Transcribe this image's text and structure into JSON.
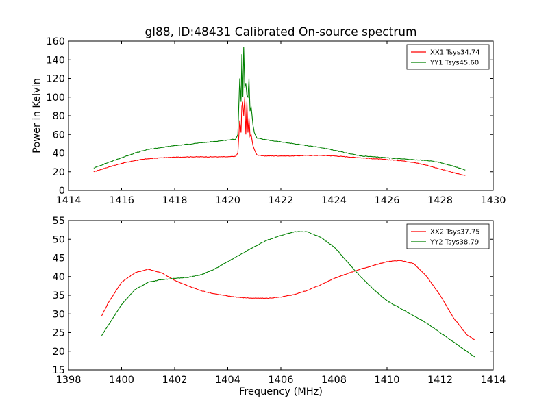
{
  "figure": {
    "title": "gl88, ID:48431 Calibrated On-source spectrum",
    "background": "#ffffff"
  },
  "chart_data": [
    {
      "type": "line",
      "title": "gl88, ID:48431 Calibrated On-source spectrum",
      "xlabel": "",
      "ylabel": "Power in Kelvin",
      "xlim": [
        1414,
        1430
      ],
      "ylim": [
        0,
        160
      ],
      "xticks": [
        1414,
        1416,
        1418,
        1420,
        1422,
        1424,
        1426,
        1428,
        1430
      ],
      "yticks": [
        0,
        20,
        40,
        60,
        80,
        100,
        120,
        140,
        160
      ],
      "grid": false,
      "legend_position": "top-right",
      "series": [
        {
          "name": "XX1 Tsys34.74",
          "color": "#ff0000",
          "x": [
            1414.95,
            1415.5,
            1416.0,
            1416.5,
            1417.0,
            1417.5,
            1418.0,
            1418.5,
            1419.0,
            1419.5,
            1420.0,
            1420.3,
            1420.38,
            1420.45,
            1420.5,
            1420.53,
            1420.56,
            1420.6,
            1420.64,
            1420.68,
            1420.72,
            1420.76,
            1420.8,
            1420.84,
            1420.88,
            1420.95,
            1421.0,
            1421.1,
            1421.3,
            1421.5,
            1422.0,
            1422.5,
            1423.0,
            1423.5,
            1424.0,
            1424.5,
            1425.0,
            1425.5,
            1426.0,
            1426.5,
            1427.0,
            1427.5,
            1428.0,
            1428.5,
            1428.95
          ],
          "y": [
            20,
            25,
            29,
            32,
            34,
            35,
            35.5,
            36,
            36,
            36,
            36,
            36.5,
            40,
            75,
            62,
            90,
            95,
            80,
            100,
            60,
            95,
            62,
            78,
            58,
            60,
            48,
            44,
            38,
            37,
            37,
            37,
            37,
            37.5,
            37.5,
            37,
            36,
            35,
            34,
            33,
            32,
            30,
            27,
            23,
            19,
            16
          ]
        },
        {
          "name": "YY1 Tsys45.60",
          "color": "#008000",
          "x": [
            1414.95,
            1415.5,
            1416.0,
            1416.5,
            1417.0,
            1417.5,
            1418.0,
            1418.5,
            1419.0,
            1419.5,
            1420.0,
            1420.3,
            1420.38,
            1420.45,
            1420.5,
            1420.53,
            1420.57,
            1420.6,
            1420.64,
            1420.68,
            1420.72,
            1420.76,
            1420.8,
            1420.84,
            1420.88,
            1420.95,
            1421.0,
            1421.1,
            1421.3,
            1421.5,
            1422.0,
            1422.5,
            1423.0,
            1423.5,
            1424.0,
            1424.5,
            1425.0,
            1425.5,
            1426.0,
            1426.5,
            1427.0,
            1427.5,
            1428.0,
            1428.5,
            1428.95
          ],
          "y": [
            24,
            30,
            35,
            40,
            44,
            46,
            48,
            49.5,
            51,
            52.5,
            54,
            55,
            60,
            120,
            95,
            146,
            100,
            154,
            110,
            115,
            102,
            100,
            120,
            85,
            90,
            70,
            62,
            56,
            55,
            54,
            52,
            50,
            48,
            46,
            43,
            40,
            37,
            36,
            35,
            34,
            33,
            32,
            30,
            26,
            22
          ]
        }
      ]
    },
    {
      "type": "line",
      "title": "",
      "xlabel": "Frequency (MHz)",
      "ylabel": "",
      "xlim": [
        1398,
        1414
      ],
      "ylim": [
        15,
        55
      ],
      "xticks": [
        1398,
        1400,
        1402,
        1404,
        1406,
        1408,
        1410,
        1412,
        1414
      ],
      "yticks": [
        15,
        20,
        25,
        30,
        35,
        40,
        45,
        50,
        55
      ],
      "grid": false,
      "legend_position": "top-right",
      "series": [
        {
          "name": "XX2 Tsys37.75",
          "color": "#ff0000",
          "x": [
            1399.25,
            1399.5,
            1400.0,
            1400.5,
            1401.0,
            1401.5,
            1402.0,
            1402.5,
            1403.0,
            1403.5,
            1404.0,
            1404.5,
            1405.0,
            1405.5,
            1406.0,
            1406.5,
            1407.0,
            1407.5,
            1408.0,
            1408.5,
            1409.0,
            1409.5,
            1410.0,
            1410.5,
            1411.0,
            1411.5,
            1412.0,
            1412.5,
            1413.0,
            1413.3
          ],
          "y": [
            29.5,
            33,
            38.5,
            41,
            42,
            41,
            39,
            37.5,
            36.2,
            35.4,
            34.8,
            34.4,
            34.2,
            34.2,
            34.5,
            35.2,
            36.3,
            37.8,
            39.5,
            40.8,
            42,
            43,
            44,
            44.3,
            43.5,
            40,
            35,
            29,
            24.5,
            23
          ]
        },
        {
          "name": "YY2 Tsys38.79",
          "color": "#008000",
          "x": [
            1399.25,
            1399.5,
            1400.0,
            1400.5,
            1401.0,
            1401.5,
            1402.0,
            1402.5,
            1403.0,
            1403.5,
            1404.0,
            1404.5,
            1405.0,
            1405.5,
            1406.0,
            1406.5,
            1407.0,
            1407.5,
            1408.0,
            1408.5,
            1409.0,
            1409.5,
            1410.0,
            1410.5,
            1411.0,
            1411.5,
            1412.0,
            1412.5,
            1413.0,
            1413.3
          ],
          "y": [
            24.2,
            27,
            32.5,
            36.5,
            38.5,
            39.2,
            39.5,
            39.8,
            40.5,
            42,
            44,
            46,
            48,
            49.8,
            51,
            52,
            52,
            50.5,
            48,
            44,
            40,
            36.5,
            33.5,
            31.5,
            29.5,
            27.5,
            25,
            22.5,
            20,
            18.5
          ]
        }
      ]
    }
  ]
}
